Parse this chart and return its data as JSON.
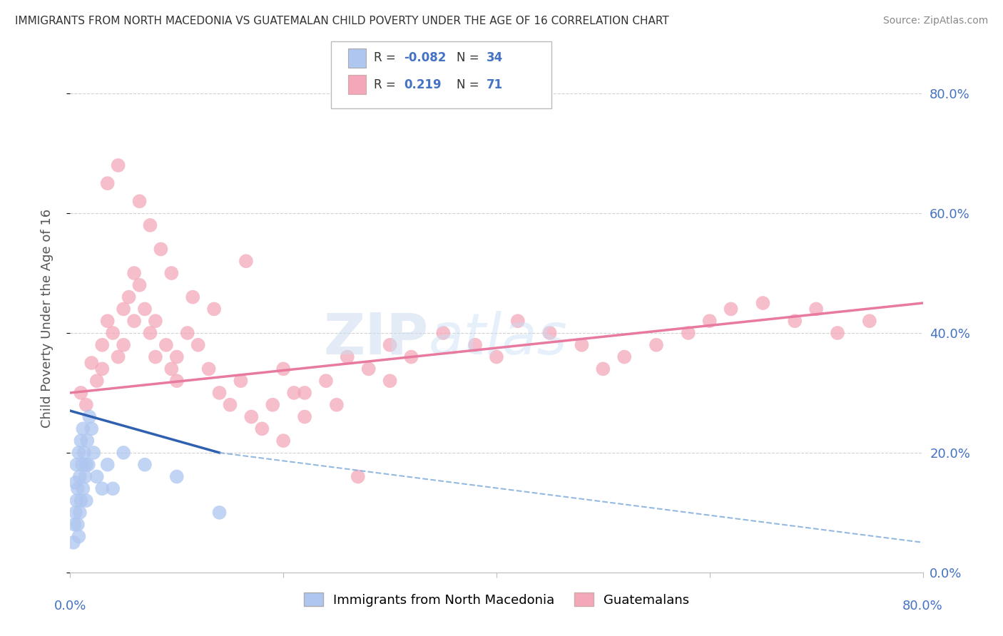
{
  "title": "IMMIGRANTS FROM NORTH MACEDONIA VS GUATEMALAN CHILD POVERTY UNDER THE AGE OF 16 CORRELATION CHART",
  "source": "Source: ZipAtlas.com",
  "ylabel": "Child Poverty Under the Age of 16",
  "ytick_vals": [
    0,
    20,
    40,
    60,
    80
  ],
  "xlim": [
    0,
    80
  ],
  "ylim": [
    0,
    85
  ],
  "legend_entries": [
    {
      "color": "#aec6f0",
      "R": "-0.082",
      "N": "34",
      "label": "Immigrants from North Macedonia"
    },
    {
      "color": "#f4a7b9",
      "R": "0.219",
      "N": "71",
      "label": "Guatemalans"
    }
  ],
  "blue_scatter_x": [
    0.3,
    0.4,
    0.5,
    0.5,
    0.6,
    0.6,
    0.7,
    0.7,
    0.8,
    0.8,
    0.9,
    0.9,
    1.0,
    1.0,
    1.1,
    1.2,
    1.2,
    1.3,
    1.4,
    1.5,
    1.5,
    1.6,
    1.7,
    1.8,
    2.0,
    2.2,
    2.5,
    3.0,
    3.5,
    4.0,
    5.0,
    7.0,
    10.0,
    14.0
  ],
  "blue_scatter_y": [
    5,
    8,
    10,
    15,
    12,
    18,
    8,
    14,
    6,
    20,
    10,
    16,
    12,
    22,
    18,
    14,
    24,
    20,
    16,
    12,
    18,
    22,
    18,
    26,
    24,
    20,
    16,
    14,
    18,
    14,
    20,
    18,
    16,
    10
  ],
  "pink_scatter_x": [
    1.0,
    1.5,
    2.0,
    2.5,
    3.0,
    3.0,
    3.5,
    4.0,
    4.5,
    5.0,
    5.0,
    5.5,
    6.0,
    6.0,
    6.5,
    7.0,
    7.5,
    8.0,
    8.0,
    9.0,
    9.5,
    10.0,
    10.0,
    11.0,
    12.0,
    13.0,
    14.0,
    15.0,
    16.0,
    17.0,
    18.0,
    19.0,
    20.0,
    20.0,
    21.0,
    22.0,
    24.0,
    25.0,
    26.0,
    28.0,
    30.0,
    30.0,
    32.0,
    35.0,
    38.0,
    40.0,
    42.0,
    45.0,
    48.0,
    50.0,
    52.0,
    55.0,
    58.0,
    60.0,
    62.0,
    65.0,
    68.0,
    70.0,
    72.0,
    75.0,
    3.5,
    4.5,
    6.5,
    7.5,
    8.5,
    9.5,
    11.5,
    13.5,
    16.5,
    22.0,
    27.0
  ],
  "pink_scatter_y": [
    30,
    28,
    35,
    32,
    38,
    34,
    42,
    40,
    36,
    38,
    44,
    46,
    42,
    50,
    48,
    44,
    40,
    36,
    42,
    38,
    34,
    36,
    32,
    40,
    38,
    34,
    30,
    28,
    32,
    26,
    24,
    28,
    22,
    34,
    30,
    26,
    32,
    28,
    36,
    34,
    38,
    32,
    36,
    40,
    38,
    36,
    42,
    40,
    38,
    34,
    36,
    38,
    40,
    42,
    44,
    45,
    42,
    44,
    40,
    42,
    65,
    68,
    62,
    58,
    54,
    50,
    46,
    44,
    52,
    30,
    16
  ],
  "blue_line_x": [
    0,
    14
  ],
  "blue_line_y": [
    27,
    20
  ],
  "blue_dashed_line_x": [
    14,
    80
  ],
  "blue_dashed_line_y": [
    20,
    5
  ],
  "pink_line_x": [
    0,
    80
  ],
  "pink_line_y": [
    30,
    45
  ],
  "background_color": "#ffffff",
  "plot_bg": "#ffffff",
  "grid_color": "#cccccc",
  "title_color": "#333333",
  "axis_label_color": "#4472c4",
  "blue_dot_color": "#aec6f0",
  "pink_dot_color": "#f4a7b9",
  "blue_line_color": "#3060b0",
  "blue_dashed_color": "#7aa8d8",
  "pink_line_color": "#e87aa0",
  "legend_R_color": "#4472c4"
}
